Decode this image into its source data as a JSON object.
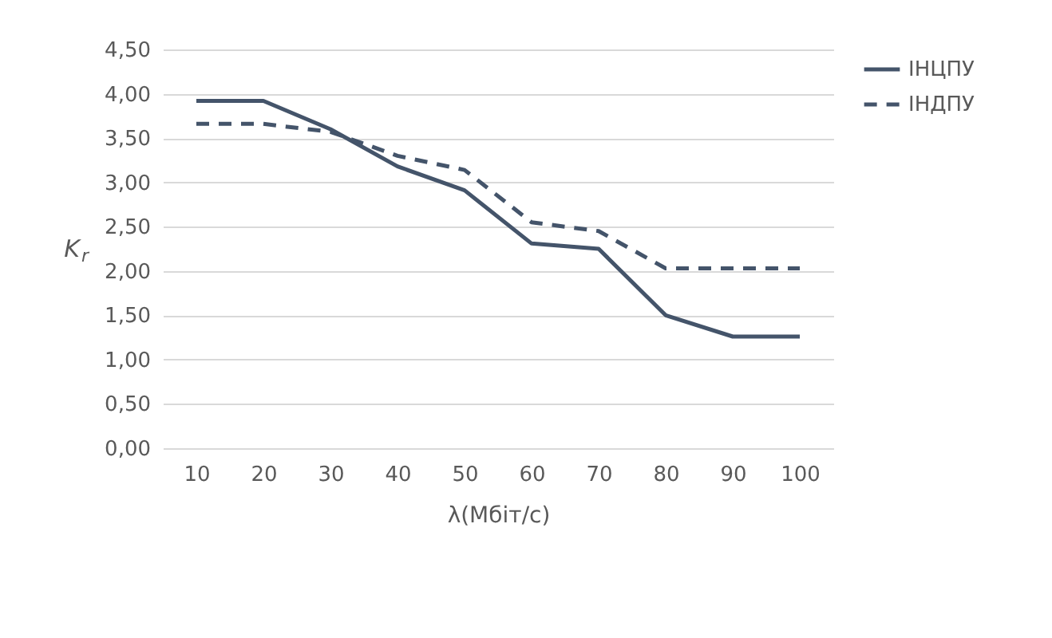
{
  "chart_data": {
    "type": "line",
    "xlabel": "λ(Мбіт/с)",
    "ylabel": "K$_{r}$",
    "categories": [
      "10",
      "20",
      "30",
      "40",
      "50",
      "60",
      "70",
      "80",
      "90",
      "100"
    ],
    "series": [
      {
        "name": "ІНЦПУ",
        "color": "#44546a",
        "line_style": "solid",
        "values": [
          3.92,
          3.92,
          3.6,
          3.18,
          2.91,
          2.31,
          2.25,
          1.5,
          1.26,
          1.26
        ]
      },
      {
        "name": "ІНДПУ",
        "color": "#44546a",
        "line_style": "dashed",
        "values": [
          3.66,
          3.66,
          3.57,
          3.3,
          3.14,
          2.55,
          2.45,
          2.03,
          2.03,
          2.03
        ]
      }
    ],
    "ylim": [
      0,
      4.5
    ],
    "yticks": [
      {
        "value": 0,
        "label": "0,00"
      },
      {
        "value": 0.5,
        "label": "0,50"
      },
      {
        "value": 1,
        "label": "1,00"
      },
      {
        "value": 1.5,
        "label": "1,50"
      },
      {
        "value": 2,
        "label": "2,00"
      },
      {
        "value": 2.5,
        "label": "2,50"
      },
      {
        "value": 3,
        "label": "3,00"
      },
      {
        "value": 3.5,
        "label": "3,50"
      },
      {
        "value": 4,
        "label": "4,00"
      },
      {
        "value": 4.5,
        "label": "4,50"
      }
    ],
    "grid": "y",
    "legend": "right",
    "marker": "none"
  }
}
